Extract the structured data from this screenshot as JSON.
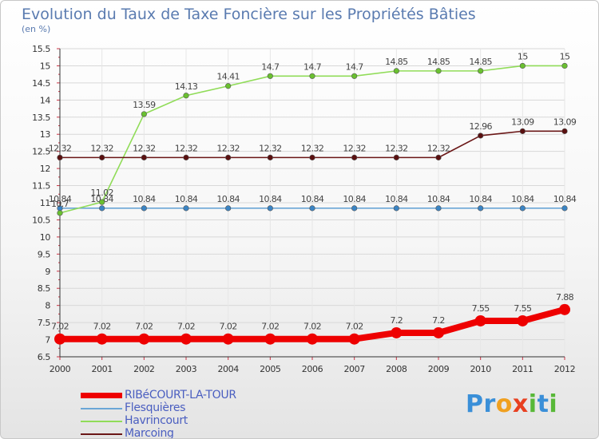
{
  "header": {
    "title": "Evolution du Taux de Taxe Foncière sur les Propriétés Bâties",
    "unit": "(en %)"
  },
  "logo": {
    "letters": [
      "P",
      "r",
      "o",
      "x",
      "i",
      "t",
      "i"
    ],
    "colors": [
      "#3a8fd8",
      "#3a8fd8",
      "#f0a020",
      "#e84020",
      "#58b838",
      "#3a8fd8",
      "#58b838"
    ]
  },
  "legend": {
    "items": [
      {
        "label": "RIBéCOURT-LA-TOUR",
        "color": "#ee0000"
      },
      {
        "label": "Flesquières",
        "color": "#6aa6d6"
      },
      {
        "label": "Havrincourt",
        "color": "#90dc58"
      },
      {
        "label": "Marcoing",
        "color": "#6a1616"
      }
    ]
  },
  "chart_data": {
    "type": "line",
    "title": "Evolution du Taux de Taxe Foncière sur les Propriétés Bâties",
    "ylabel": "(en %)",
    "xlabel": "",
    "x": [
      "2000",
      "2001",
      "2002",
      "2003",
      "2004",
      "2005",
      "2006",
      "2007",
      "2008",
      "2009",
      "2010",
      "2011",
      "2012"
    ],
    "ylim": [
      6.5,
      15.5
    ],
    "yticks": [
      "6.5",
      "7",
      "7.5",
      "8",
      "8.5",
      "9",
      "9.5",
      "10",
      "10.5",
      "11",
      "11.5",
      "12",
      "12.5",
      "13",
      "13.5",
      "14",
      "14.5",
      "15",
      "15.5"
    ],
    "series": [
      {
        "name": "Flesquières",
        "color": "#6aa6d6",
        "marker": "#3a84c4",
        "values": [
          10.84,
          10.84,
          10.84,
          10.84,
          10.84,
          10.84,
          10.84,
          10.84,
          10.84,
          10.84,
          10.84,
          10.84,
          10.84
        ],
        "labels": [
          "10.84",
          "10.84",
          "10.84",
          "10.84",
          "10.84",
          "10.84",
          "10.84",
          "10.84",
          "10.84",
          "10.84",
          "10.84",
          "10.84",
          "10.84"
        ]
      },
      {
        "name": "Havrincourt",
        "color": "#90dc58",
        "marker": "#6ac030",
        "values": [
          10.7,
          11.02,
          13.59,
          14.13,
          14.41,
          14.7,
          14.7,
          14.7,
          14.85,
          14.85,
          14.85,
          15,
          15
        ],
        "labels": [
          "10.7",
          "11.02",
          "13.59",
          "14.13",
          "14.41",
          "14.7",
          "14.7",
          "14.7",
          "14.85",
          "14.85",
          "14.85",
          "15",
          "15"
        ]
      },
      {
        "name": "Marcoing",
        "color": "#6a1616",
        "marker": "#5a1010",
        "values": [
          12.32,
          12.32,
          12.32,
          12.32,
          12.32,
          12.32,
          12.32,
          12.32,
          12.32,
          12.32,
          12.96,
          13.09,
          13.09
        ],
        "labels": [
          "12.32",
          "12.32",
          "12.32",
          "12.32",
          "12.32",
          "12.32",
          "12.32",
          "12.32",
          "12.32",
          "12.32",
          "12.96",
          "13.09",
          "13.09"
        ]
      },
      {
        "name": "RIBéCOURT-LA-TOUR",
        "color": "#ee0000",
        "marker": "#ee0000",
        "values": [
          7.02,
          7.02,
          7.02,
          7.02,
          7.02,
          7.02,
          7.02,
          7.02,
          7.2,
          7.2,
          7.55,
          7.55,
          7.88
        ],
        "labels": [
          "7.02",
          "7.02",
          "7.02",
          "7.02",
          "7.02",
          "7.02",
          "7.02",
          "7.02",
          "7.2",
          "7.2",
          "7.55",
          "7.55",
          "7.88"
        ]
      }
    ]
  }
}
